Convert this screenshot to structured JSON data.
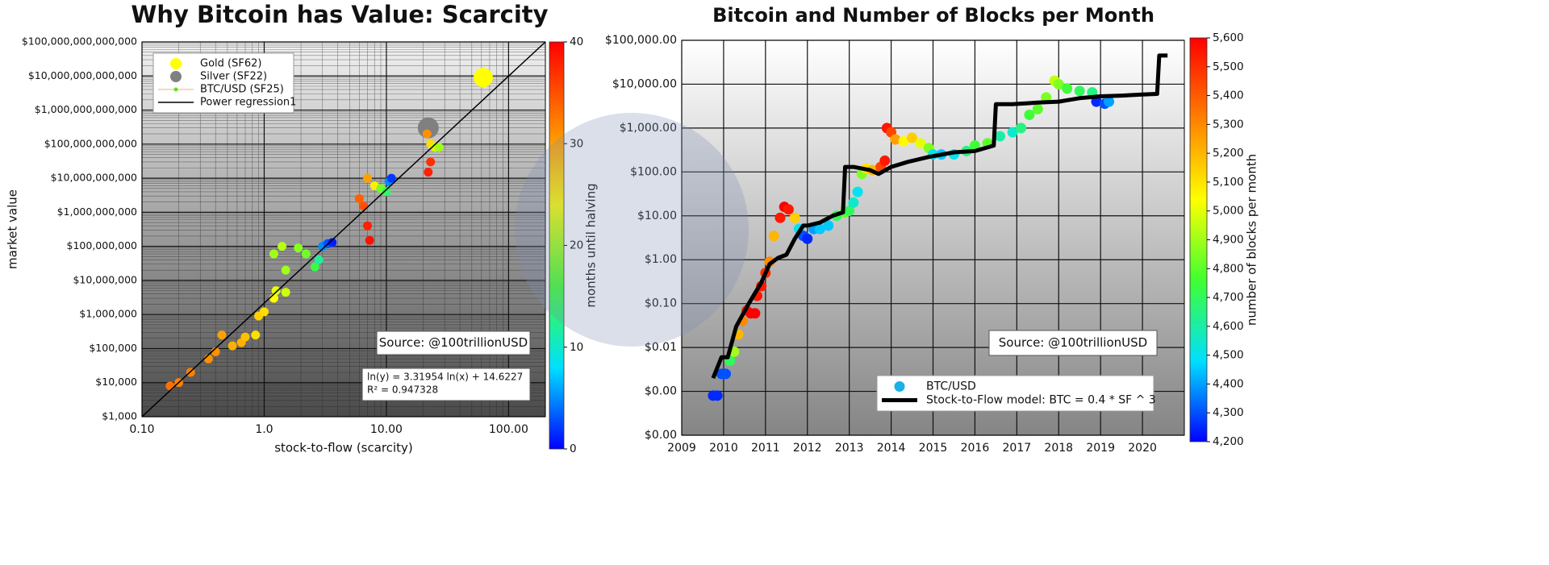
{
  "chart_data": [
    {
      "type": "scatter",
      "title": "Why Bitcoin has Value: Scarcity",
      "xlabel": "stock-to-flow (scarcity)",
      "ylabel": "market value",
      "xlog": true,
      "ylog": true,
      "grid": true,
      "minor_grid": true,
      "legend": "upper left",
      "xlim": [
        0.1,
        200
      ],
      "ylim": [
        1000,
        100000000000000
      ],
      "xticks": [
        {
          "value": 0.1,
          "label": "0.10"
        },
        {
          "value": 1,
          "label": "1.0"
        },
        {
          "value": 10,
          "label": "10.00"
        },
        {
          "value": 100,
          "label": "100.00"
        }
      ],
      "yticks": [
        {
          "value": 1000,
          "label": "$1,000"
        },
        {
          "value": 10000,
          "label": "$10,000"
        },
        {
          "value": 100000,
          "label": "$100,000"
        },
        {
          "value": 1000000,
          "label": "$1,000,000"
        },
        {
          "value": 10000000,
          "label": "$10,000,000"
        },
        {
          "value": 100000000,
          "label": "$100,000,000"
        },
        {
          "value": 1000000000,
          "label": "$1,000,000,000"
        },
        {
          "value": 10000000000,
          "label": "$10,000,000,000"
        },
        {
          "value": 100000000000,
          "label": "$100,000,000,000"
        },
        {
          "value": 1000000000000,
          "label": "$1,000,000,000,000"
        },
        {
          "value": 10000000000000,
          "label": "$10,000,000,000,000"
        },
        {
          "value": 100000000000000,
          "label": "$100,000,000,000,000"
        }
      ],
      "colorbar": {
        "label": "months until halving",
        "lim": [
          0,
          40
        ],
        "ticks": [
          0,
          10,
          20,
          30,
          40
        ],
        "colors": [
          "#0000ff",
          "#00e0ff",
          "#40ff30",
          "#ffff00",
          "#ff8000",
          "#ff0000"
        ]
      },
      "series": [
        {
          "name": "Gold (SF62)",
          "color": "#ffff00",
          "x": [
            62
          ],
          "values": [
            9000000000000
          ]
        },
        {
          "name": "Silver (SF22)",
          "color": "#808080",
          "x": [
            22
          ],
          "values": [
            300000000000
          ]
        },
        {
          "name": "BTC/USD (SF25)",
          "color": "#66dd22",
          "x": [
            0.17,
            0.2,
            0.25,
            0.35,
            0.4,
            0.45,
            0.55,
            0.65,
            0.7,
            0.85,
            0.9,
            1.0,
            1.2,
            1.25,
            1.5,
            1.2,
            1.4,
            1.5,
            1.9,
            2.2,
            2.6,
            2.8,
            3.0,
            3.3,
            3.6,
            6,
            6.5,
            7.0,
            7.3,
            7,
            8,
            9,
            10,
            10.5,
            11,
            22,
            23,
            21.5,
            23,
            25,
            27
          ],
          "values": [
            8000,
            10000,
            20000,
            50000,
            80000,
            250000,
            120000,
            150000,
            220000,
            250000,
            900000,
            1200000,
            3000000,
            5000000,
            4500000,
            60000000,
            100000000,
            20000000,
            90000000,
            60000000,
            25000000,
            40000000,
            100000000,
            120000000,
            130000000,
            2500000000,
            1500000000,
            400000000,
            150000000,
            10000000000,
            6000000000,
            5000000000,
            4000000000,
            8000000000,
            10000000000,
            15000000000,
            30000000000,
            200000000000,
            100000000000,
            80000000000,
            80000000000
          ],
          "colorvalues": [
            33,
            32,
            32,
            31,
            31,
            30,
            29,
            29,
            28,
            26,
            27,
            26,
            24,
            23,
            22,
            20,
            21,
            20,
            19,
            18,
            15,
            12,
            5,
            3,
            1,
            34,
            35,
            38,
            39,
            30,
            25,
            18,
            14,
            5,
            2,
            38,
            37,
            31,
            26,
            22,
            20
          ]
        },
        {
          "name": "Power regression1",
          "color": "#000000",
          "style": "line",
          "x": [
            0.1,
            200
          ],
          "values": [
            1000,
            100000000000000
          ]
        }
      ],
      "source_note": "Source: @100trillionUSD",
      "regression_text": [
        "ln(y) = 3.31954 ln(x) + 14.6227",
        "R² = 0.947328"
      ]
    },
    {
      "type": "scatter",
      "title": "Bitcoin and Number of Blocks per Month",
      "xlog": false,
      "ylog": true,
      "grid": true,
      "minor_grid": false,
      "legend": "lower right",
      "xlim": [
        2009,
        2021
      ],
      "ylim": [
        0.0001,
        100000
      ],
      "xticks": [
        2009,
        2010,
        2011,
        2012,
        2013,
        2014,
        2015,
        2016,
        2017,
        2018,
        2019,
        2020
      ],
      "yticks": [
        {
          "value": 0.0001,
          "label": "$0.00"
        },
        {
          "value": 0.001,
          "label": "$0.00"
        },
        {
          "value": 0.01,
          "label": "$0.01"
        },
        {
          "value": 0.1,
          "label": "$0.10"
        },
        {
          "value": 1,
          "label": "$1.00"
        },
        {
          "value": 10,
          "label": "$10.00"
        },
        {
          "value": 100,
          "label": "$100.00"
        },
        {
          "value": 1000,
          "label": "$1,000.00"
        },
        {
          "value": 10000,
          "label": "$10,000.00"
        },
        {
          "value": 100000,
          "label": "$100,000.00"
        }
      ],
      "colorbar": {
        "label": "number of blocks per month",
        "lim": [
          4200,
          5600
        ],
        "ticks": [
          {
            "value": 4200,
            "label": "4,200"
          },
          {
            "value": 4300,
            "label": "4,300"
          },
          {
            "value": 4400,
            "label": "4,400"
          },
          {
            "value": 4500,
            "label": "4,500"
          },
          {
            "value": 4600,
            "label": "4,600"
          },
          {
            "value": 4700,
            "label": "4,700"
          },
          {
            "value": 4800,
            "label": "4,800"
          },
          {
            "value": 4900,
            "label": "4,900"
          },
          {
            "value": 5000,
            "label": "5,000"
          },
          {
            "value": 5100,
            "label": "5,100"
          },
          {
            "value": 5200,
            "label": "5,200"
          },
          {
            "value": 5300,
            "label": "5,300"
          },
          {
            "value": 5400,
            "label": "5,400"
          },
          {
            "value": 5500,
            "label": "5,500"
          },
          {
            "value": 5600,
            "label": "5,600"
          }
        ],
        "colors": [
          "#0000ff",
          "#00e0ff",
          "#40ff30",
          "#ffff00",
          "#ff8000",
          "#ff0000"
        ]
      },
      "series": [
        {
          "name": "BTC/USD",
          "color": "#1ab0e8",
          "x": [
            2009.75,
            2009.85,
            2009.95,
            2010.05,
            2010.15,
            2010.25,
            2010.35,
            2010.45,
            2010.55,
            2010.65,
            2010.75,
            2010.8,
            2010.9,
            2011.0,
            2011.1,
            2011.2,
            2011.35,
            2011.45,
            2011.55,
            2011.7,
            2011.8,
            2011.9,
            2012.0,
            2012.15,
            2012.3,
            2012.5,
            2012.7,
            2012.9,
            2013.0,
            2013.1,
            2013.2,
            2013.3,
            2013.4,
            2013.55,
            2013.75,
            2013.85,
            2013.9,
            2014.0,
            2014.1,
            2014.3,
            2014.5,
            2014.7,
            2014.9,
            2015.0,
            2015.2,
            2015.5,
            2015.8,
            2016.0,
            2016.3,
            2016.6,
            2016.9,
            2017.1,
            2017.3,
            2017.5,
            2017.7,
            2017.9,
            2018.0,
            2018.2,
            2018.5,
            2018.8,
            2018.9,
            2019.1,
            2019.2
          ],
          "values": [
            0.0008,
            0.0008,
            0.0025,
            0.0025,
            0.005,
            0.008,
            0.02,
            0.04,
            0.07,
            0.06,
            0.06,
            0.15,
            0.25,
            0.5,
            0.9,
            3.5,
            9,
            16,
            14,
            9,
            5,
            3.5,
            3,
            5,
            5,
            6,
            10,
            12,
            13,
            20,
            35,
            90,
            120,
            110,
            130,
            180,
            1000,
            800,
            550,
            500,
            600,
            450,
            350,
            250,
            250,
            250,
            300,
            400,
            450,
            650,
            800,
            1000,
            2000,
            2700,
            5000,
            12000,
            10000,
            8000,
            7000,
            6500,
            4000,
            3600,
            4000
          ],
          "colorvalues": [
            4250,
            4250,
            4300,
            4300,
            4700,
            4900,
            5200,
            5300,
            5500,
            5600,
            5600,
            5550,
            5550,
            5500,
            5300,
            5200,
            5550,
            5600,
            5550,
            5150,
            4500,
            4300,
            4250,
            4400,
            4450,
            4450,
            4700,
            4800,
            4700,
            4550,
            4500,
            4850,
            5100,
            5200,
            5450,
            5550,
            5550,
            5450,
            5250,
            5050,
            5150,
            5000,
            4850,
            4500,
            4450,
            4500,
            4650,
            4750,
            4800,
            4600,
            4550,
            4650,
            4750,
            4800,
            4850,
            4950,
            4850,
            4750,
            4700,
            4650,
            4250,
            4300,
            4400
          ]
        },
        {
          "name": "Stock-to-Flow model: BTC = 0.4 * SF ^ 3",
          "color": "#000000",
          "style": "line",
          "x": [
            2009.75,
            2009.95,
            2010.1,
            2010.3,
            2010.6,
            2010.9,
            2011.1,
            2011.3,
            2011.5,
            2011.7,
            2011.9,
            2012.0,
            2012.3,
            2012.6,
            2012.85,
            2012.9,
            2013.1,
            2013.5,
            2013.7,
            2014.0,
            2014.4,
            2014.9,
            2015.5,
            2016.0,
            2016.45,
            2016.5,
            2016.9,
            2017.5,
            2018.0,
            2018.5,
            2019.0,
            2019.5,
            2020.0,
            2020.35,
            2020.4,
            2020.6
          ],
          "values": [
            0.002,
            0.006,
            0.006,
            0.03,
            0.1,
            0.3,
            0.8,
            1.1,
            1.3,
            3,
            6,
            6,
            7,
            10,
            12,
            130,
            130,
            110,
            90,
            130,
            170,
            220,
            280,
            300,
            400,
            3500,
            3500,
            3800,
            4000,
            4800,
            5300,
            5500,
            5800,
            6000,
            45000,
            45000
          ]
        }
      ],
      "source_note": "Source: @100trillionUSD"
    }
  ]
}
